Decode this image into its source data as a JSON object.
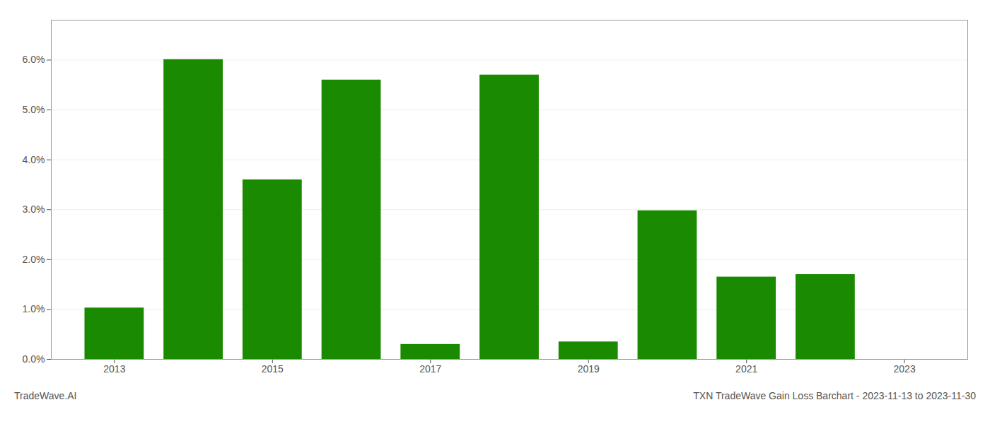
{
  "chart_data": {
    "type": "bar",
    "x": [
      2013,
      2014,
      2015,
      2016,
      2017,
      2018,
      2019,
      2020,
      2021,
      2022
    ],
    "values": [
      0.0103,
      0.0601,
      0.036,
      0.056,
      0.003,
      0.057,
      0.0035,
      0.0298,
      0.0165,
      0.017
    ],
    "color": "#1a8a00",
    "xlim": [
      2012.2,
      2023.8
    ],
    "xticks": [
      2013,
      2015,
      2017,
      2019,
      2021,
      2023
    ],
    "ylim": [
      0,
      0.068
    ],
    "yticks": [
      {
        "value": 0.0,
        "label": "0.0%"
      },
      {
        "value": 0.01,
        "label": "1.0%"
      },
      {
        "value": 0.02,
        "label": "2.0%"
      },
      {
        "value": 0.03,
        "label": "3.0%"
      },
      {
        "value": 0.04,
        "label": "4.0%"
      },
      {
        "value": 0.05,
        "label": "5.0%"
      },
      {
        "value": 0.06,
        "label": "6.0%"
      }
    ],
    "grid": true,
    "annotations": [
      "TradeWave.AI",
      "TXN TradeWave Gain Loss Barchart - 2023-11-13 to 2023-11-30"
    ]
  }
}
